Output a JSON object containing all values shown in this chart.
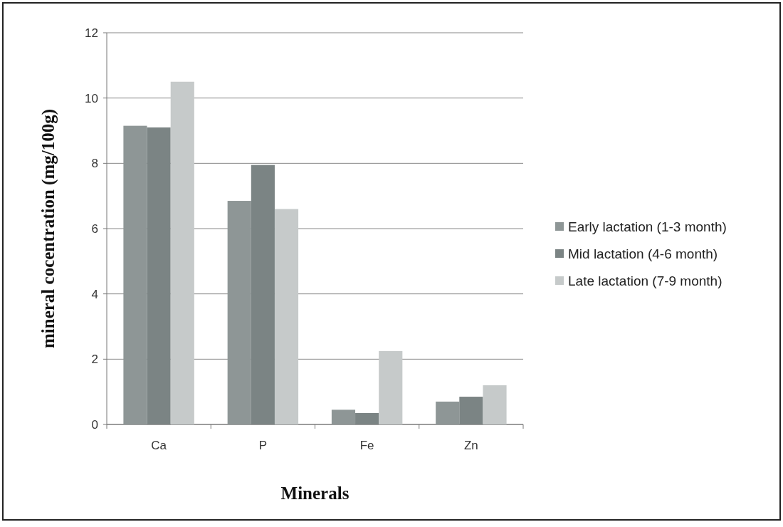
{
  "chart_data": {
    "type": "bar",
    "xlabel": "Minerals",
    "ylabel": "mineral cocentration (mg/100g)",
    "categories": [
      "Ca",
      "P",
      "Fe",
      "Zn"
    ],
    "series": [
      {
        "name": "Early lactation (1-3 month)",
        "color": "#8e9696",
        "values": [
          9.15,
          6.85,
          0.45,
          0.7
        ]
      },
      {
        "name": "Mid lactation (4-6 month)",
        "color": "#7b8484",
        "values": [
          9.1,
          7.95,
          0.35,
          0.85
        ]
      },
      {
        "name": "Late lactation (7-9 month)",
        "color": "#c6caca",
        "values": [
          10.5,
          6.6,
          2.25,
          1.2
        ]
      }
    ],
    "ylim": [
      0,
      12
    ],
    "yticks": [
      0,
      2,
      4,
      6,
      8,
      10,
      12
    ],
    "grid": "y",
    "legend": "right"
  }
}
